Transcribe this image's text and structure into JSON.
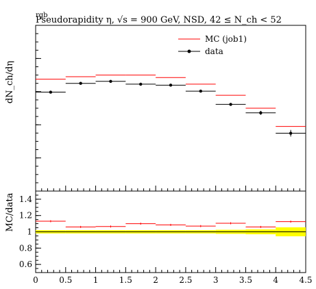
{
  "chart_data": {
    "type": "line",
    "title": "Pseudorapidity η, √s = 900 GeV, NSD, 42 ≤ N_ch < 52",
    "title_overlap_glyph": "rgb",
    "top_panel": {
      "ylabel": "dN_ch/dη",
      "y_range": [
        0,
        1
      ],
      "y_tick_labels_shown": false
    },
    "bottom_panel": {
      "ylabel": "MC/data",
      "ylim": [
        0.5,
        1.5
      ],
      "y_ticks": [
        0.6,
        0.8,
        1,
        1.2,
        1.4
      ],
      "y_tick_labels": [
        "0.6",
        "0.8",
        "1",
        "1.2",
        "1.4"
      ]
    },
    "x_range": [
      0,
      4.5
    ],
    "x_ticks": [
      0,
      0.5,
      1,
      1.5,
      2,
      2.5,
      3,
      3.5,
      4,
      4.5
    ],
    "x_tick_labels": [
      "0",
      "0.5",
      "1",
      "1.5",
      "2",
      "2.5",
      "3",
      "3.5",
      "4",
      "4.5"
    ],
    "bins": [
      [
        0,
        0.5
      ],
      [
        0.5,
        1
      ],
      [
        1,
        1.5
      ],
      [
        1.5,
        2
      ],
      [
        2,
        2.5
      ],
      [
        2.5,
        3
      ],
      [
        3,
        3.5
      ],
      [
        3.5,
        4
      ],
      [
        4,
        4.5
      ]
    ],
    "series": [
      {
        "name": "MC (job1)",
        "color": "#ff0000",
        "values": [
          0.675,
          0.69,
          0.7,
          0.7,
          0.685,
          0.645,
          0.578,
          0.5,
          0.39
        ]
      },
      {
        "name": "data",
        "color": "#000000",
        "values": [
          0.597,
          0.65,
          0.662,
          0.645,
          0.639,
          0.603,
          0.523,
          0.472,
          0.349
        ],
        "errors": [
          0.002,
          0.002,
          0.002,
          0.002,
          0.002,
          0.002,
          0.004,
          0.012,
          0.02
        ]
      }
    ],
    "ratio": {
      "values": [
        1.13,
        1.06,
        1.065,
        1.1,
        1.085,
        1.07,
        1.105,
        1.06,
        1.125
      ],
      "band_color": "#ffff00",
      "band_half_width": [
        0.02,
        0.02,
        0.02,
        0.02,
        0.02,
        0.02,
        0.025,
        0.03,
        0.055
      ]
    },
    "legend_placement": "top-right",
    "grid": false
  }
}
